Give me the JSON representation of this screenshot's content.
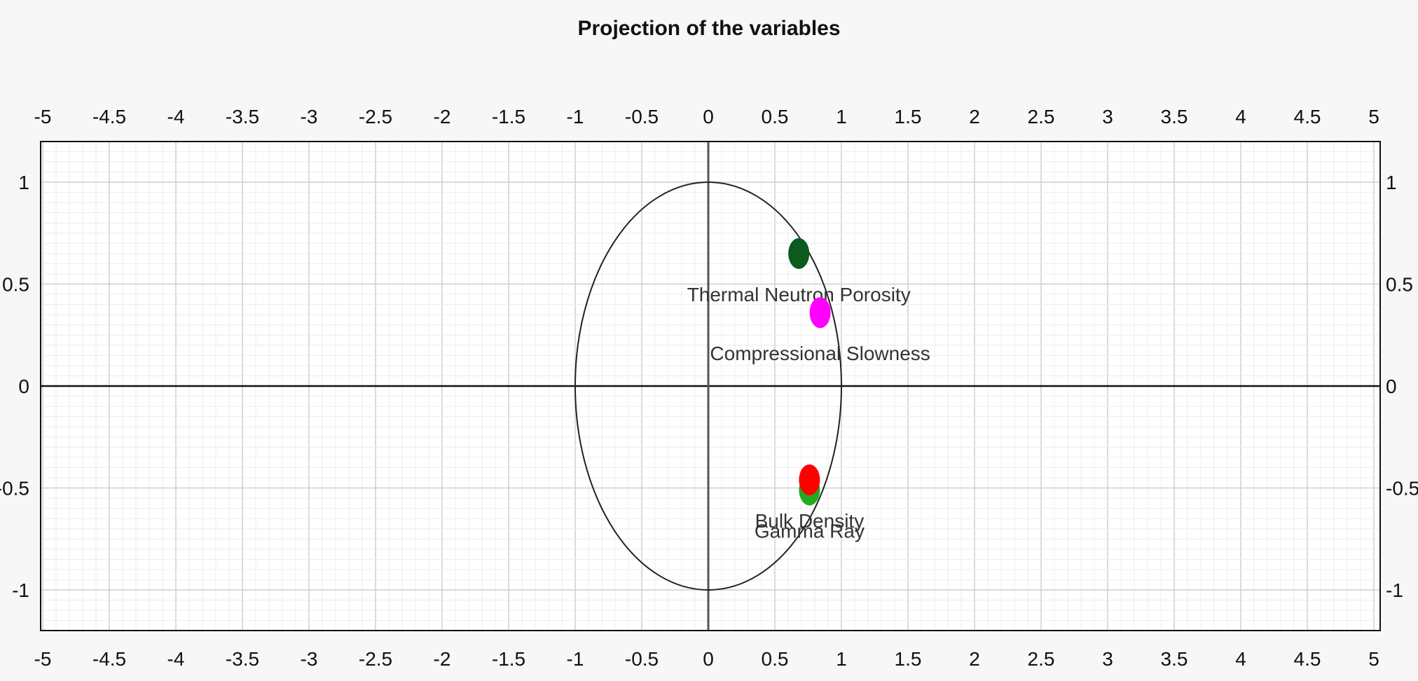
{
  "chart_data": {
    "type": "scatter",
    "title": "Projection of the variables",
    "xlabel": "",
    "ylabel": "",
    "xlim": [
      -5,
      5
    ],
    "ylim": [
      -1.2,
      1.2
    ],
    "xticks": [
      "-5",
      "-4.5",
      "-4",
      "-3.5",
      "-3",
      "-2.5",
      "-2",
      "-1.5",
      "-1",
      "-0.5",
      "0",
      "0.5",
      "1",
      "1.5",
      "2",
      "2.5",
      "3",
      "3.5",
      "4",
      "4.5",
      "5"
    ],
    "yticks": [
      "-1",
      "-0.5",
      "0",
      "0.5",
      "1"
    ],
    "grid": true,
    "unit_circle": true,
    "points": [
      {
        "label": "Thermal Neutron Porosity",
        "x": 0.68,
        "y": 0.65,
        "color": "#0b5a1e"
      },
      {
        "label": "Compressional Slowness",
        "x": 0.84,
        "y": 0.36,
        "color": "#ff00ff"
      },
      {
        "label": "Gamma Ray",
        "x": 0.76,
        "y": -0.51,
        "color": "#22aa22"
      },
      {
        "label": "Bulk Density",
        "x": 0.76,
        "y": -0.46,
        "color": "#ff0000"
      }
    ]
  }
}
